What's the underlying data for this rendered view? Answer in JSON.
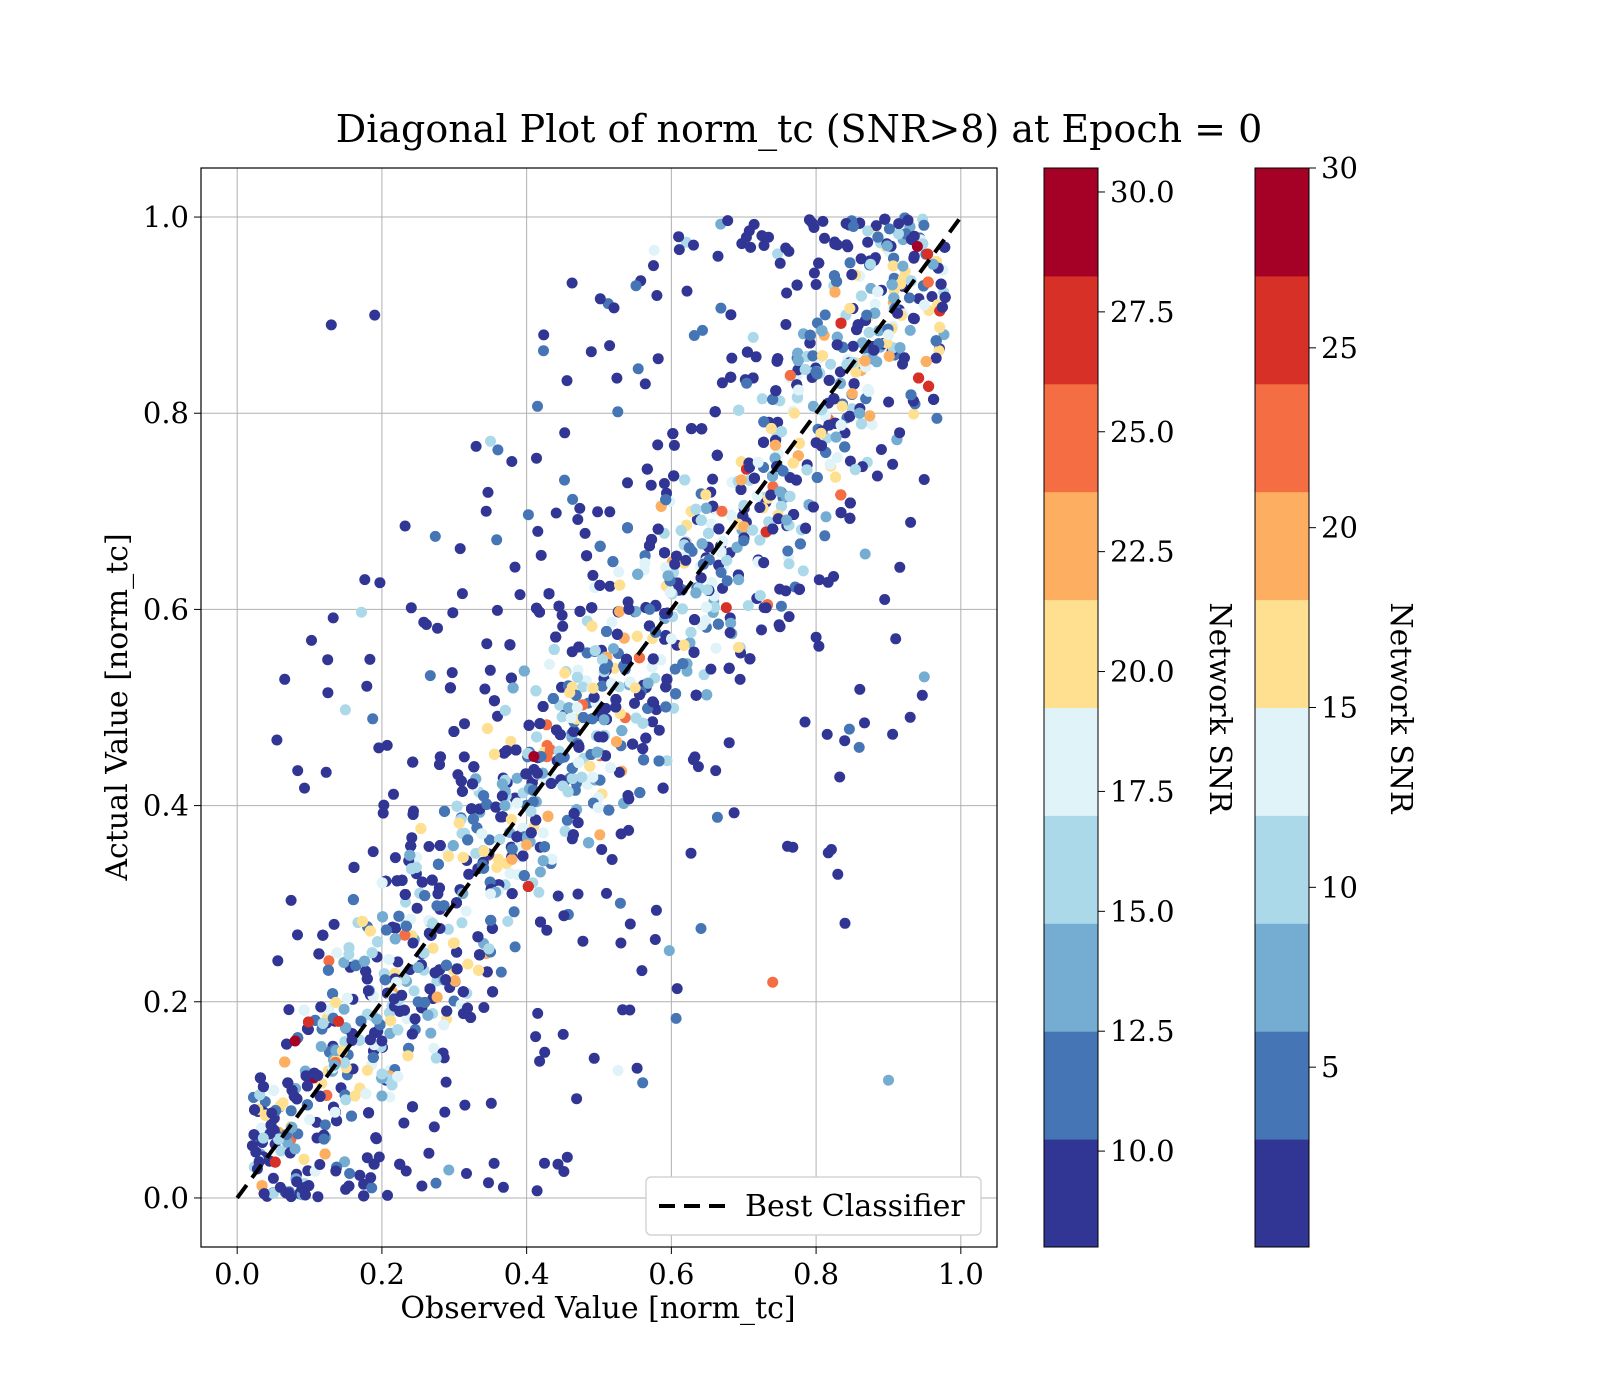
{
  "chart_data": {
    "type": "scatter",
    "title": "Diagonal Plot of norm_tc (SNR>8) at Epoch = 0",
    "xlabel": "Observed Value [norm_tc]",
    "ylabel": "Actual Value [norm_tc]",
    "xlim": [
      -0.05,
      1.05
    ],
    "ylim": [
      -0.05,
      1.05
    ],
    "xticks": [
      "0.0",
      "0.2",
      "0.4",
      "0.6",
      "0.8",
      "1.0"
    ],
    "yticks": [
      "0.0",
      "0.2",
      "0.4",
      "0.6",
      "0.8",
      "1.0"
    ],
    "grid": true,
    "legend": {
      "placement": "lower-right",
      "entries": [
        {
          "label": "Best Classifier",
          "style": "black dashed line"
        }
      ]
    },
    "reference_line": {
      "name": "Best Classifier",
      "x": [
        0,
        1
      ],
      "y": [
        0,
        1
      ],
      "color": "#000000"
    },
    "colorbars": [
      {
        "label": "Network SNR",
        "range": [
          8,
          30.5
        ],
        "ticks": [
          "10.0",
          "12.5",
          "15.0",
          "17.5",
          "20.0",
          "22.5",
          "25.0",
          "27.5",
          "30.0"
        ],
        "tick_values": [
          10,
          12.5,
          15,
          17.5,
          20,
          22.5,
          25,
          27.5,
          30
        ]
      },
      {
        "label": "Network SNR",
        "range": [
          0,
          30
        ],
        "ticks": [
          "5",
          "10",
          "15",
          "20",
          "25",
          "30"
        ],
        "tick_values": [
          5,
          10,
          15,
          20,
          25,
          30
        ]
      }
    ],
    "colormap": [
      "#313695",
      "#4575b4",
      "#74add1",
      "#abd9e9",
      "#e0f3f8",
      "#fee090",
      "#fdae61",
      "#f46d43",
      "#d73027",
      "#a50026"
    ],
    "points_description_free": true,
    "points": [
      [
        0.05,
        0.02,
        9
      ],
      [
        0.08,
        0.05,
        14
      ],
      [
        0.1,
        0.08,
        19
      ],
      [
        0.12,
        0.06,
        11
      ],
      [
        0.15,
        0.1,
        16
      ],
      [
        0.18,
        0.13,
        21
      ],
      [
        0.2,
        0.16,
        10
      ],
      [
        0.22,
        0.22,
        17
      ],
      [
        0.25,
        0.2,
        12
      ],
      [
        0.27,
        0.28,
        15
      ],
      [
        0.3,
        0.26,
        20
      ],
      [
        0.32,
        0.33,
        9
      ],
      [
        0.35,
        0.31,
        18
      ],
      [
        0.37,
        0.4,
        13
      ],
      [
        0.4,
        0.36,
        23
      ],
      [
        0.42,
        0.45,
        11
      ],
      [
        0.45,
        0.42,
        16
      ],
      [
        0.47,
        0.5,
        19
      ],
      [
        0.5,
        0.47,
        10
      ],
      [
        0.52,
        0.56,
        14
      ],
      [
        0.55,
        0.52,
        21
      ],
      [
        0.57,
        0.6,
        12
      ],
      [
        0.6,
        0.57,
        17
      ],
      [
        0.62,
        0.65,
        9
      ],
      [
        0.65,
        0.62,
        15
      ],
      [
        0.67,
        0.7,
        24
      ],
      [
        0.7,
        0.67,
        11
      ],
      [
        0.72,
        0.75,
        18
      ],
      [
        0.75,
        0.72,
        13
      ],
      [
        0.77,
        0.8,
        20
      ],
      [
        0.8,
        0.77,
        10
      ],
      [
        0.82,
        0.85,
        16
      ],
      [
        0.85,
        0.82,
        22
      ],
      [
        0.87,
        0.9,
        12
      ],
      [
        0.9,
        0.88,
        19
      ],
      [
        0.92,
        0.95,
        14
      ],
      [
        0.94,
        0.97,
        30
      ],
      [
        0.41,
        0.45,
        30
      ],
      [
        0.08,
        0.16,
        29
      ],
      [
        0.14,
        0.18,
        28
      ],
      [
        0.74,
        0.22,
        24
      ],
      [
        0.93,
        0.49,
        9
      ],
      [
        0.91,
        0.57,
        9
      ],
      [
        0.9,
        0.12,
        14
      ],
      [
        0.83,
        0.33,
        9
      ],
      [
        0.84,
        0.28,
        9
      ],
      [
        0.13,
        0.89,
        9
      ],
      [
        0.19,
        0.9,
        9
      ],
      [
        0.58,
        0.92,
        9
      ],
      [
        0.61,
        0.98,
        9
      ]
    ]
  }
}
